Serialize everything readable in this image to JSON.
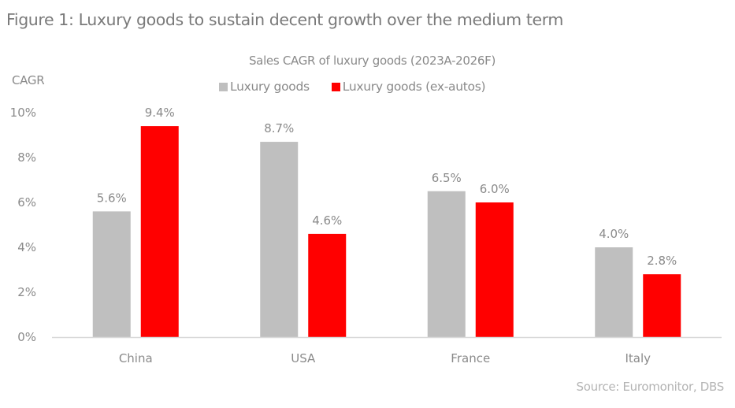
{
  "figure_title": "Figure 1: Luxury goods to sustain decent growth over the medium term",
  "source": "Source:  Euromonitor, DBS",
  "colors": {
    "luxury_goods": "#bfbfbf",
    "luxury_goods_ex_autos": "#ff0000",
    "text": "#8a8a8a",
    "axis": "#d9d9d9"
  },
  "chart_data": {
    "type": "bar",
    "title": "Sales CAGR of luxury goods (2023A-2026F)",
    "ylabel": "CAGR",
    "xlabel": "",
    "categories": [
      "China",
      "USA",
      "France",
      "Italy"
    ],
    "series": [
      {
        "name": "Luxury goods",
        "values": [
          5.6,
          8.7,
          6.5,
          4.0
        ],
        "labels": [
          "5.6%",
          "8.7%",
          "6.5%",
          "4.0%"
        ],
        "color": "#bfbfbf"
      },
      {
        "name": "Luxury goods (ex-autos)",
        "values": [
          9.4,
          4.6,
          6.0,
          2.8
        ],
        "labels": [
          "9.4%",
          "4.6%",
          "6.0%",
          "2.8%"
        ],
        "color": "#ff0000"
      }
    ],
    "ylim": [
      0,
      10
    ],
    "yticks": [
      0,
      2,
      4,
      6,
      8,
      10
    ],
    "ytick_labels": [
      "0%",
      "2%",
      "4%",
      "6%",
      "8%",
      "10%"
    ],
    "grid": false,
    "legend_position": "top-center"
  }
}
